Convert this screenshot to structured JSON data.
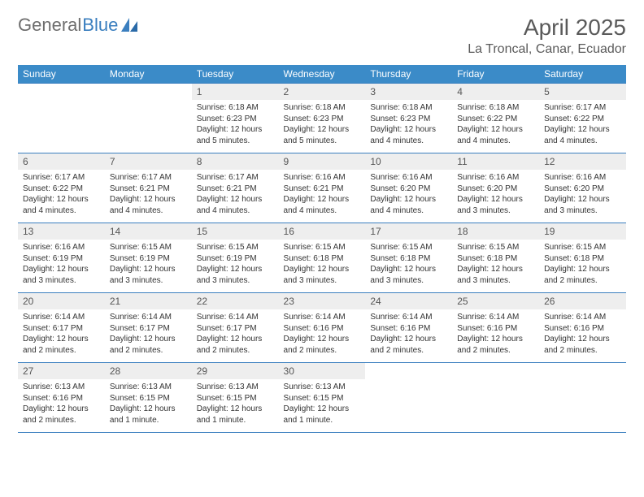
{
  "logo": {
    "text1": "General",
    "text2": "Blue"
  },
  "title": "April 2025",
  "location": "La Troncal, Canar, Ecuador",
  "colors": {
    "header_bg": "#3b8bc8",
    "header_text": "#ffffff",
    "border": "#3b7fbf",
    "daynum_bg": "#eeeeee",
    "text": "#333333",
    "logo_gray": "#6e6e6e",
    "logo_blue": "#3b7fbf"
  },
  "weekdays": [
    "Sunday",
    "Monday",
    "Tuesday",
    "Wednesday",
    "Thursday",
    "Friday",
    "Saturday"
  ],
  "firstDayIndex": 2,
  "daysInMonth": 30,
  "days": {
    "1": {
      "sunrise": "6:18 AM",
      "sunset": "6:23 PM",
      "daylight": "12 hours and 5 minutes."
    },
    "2": {
      "sunrise": "6:18 AM",
      "sunset": "6:23 PM",
      "daylight": "12 hours and 5 minutes."
    },
    "3": {
      "sunrise": "6:18 AM",
      "sunset": "6:23 PM",
      "daylight": "12 hours and 4 minutes."
    },
    "4": {
      "sunrise": "6:18 AM",
      "sunset": "6:22 PM",
      "daylight": "12 hours and 4 minutes."
    },
    "5": {
      "sunrise": "6:17 AM",
      "sunset": "6:22 PM",
      "daylight": "12 hours and 4 minutes."
    },
    "6": {
      "sunrise": "6:17 AM",
      "sunset": "6:22 PM",
      "daylight": "12 hours and 4 minutes."
    },
    "7": {
      "sunrise": "6:17 AM",
      "sunset": "6:21 PM",
      "daylight": "12 hours and 4 minutes."
    },
    "8": {
      "sunrise": "6:17 AM",
      "sunset": "6:21 PM",
      "daylight": "12 hours and 4 minutes."
    },
    "9": {
      "sunrise": "6:16 AM",
      "sunset": "6:21 PM",
      "daylight": "12 hours and 4 minutes."
    },
    "10": {
      "sunrise": "6:16 AM",
      "sunset": "6:20 PM",
      "daylight": "12 hours and 4 minutes."
    },
    "11": {
      "sunrise": "6:16 AM",
      "sunset": "6:20 PM",
      "daylight": "12 hours and 3 minutes."
    },
    "12": {
      "sunrise": "6:16 AM",
      "sunset": "6:20 PM",
      "daylight": "12 hours and 3 minutes."
    },
    "13": {
      "sunrise": "6:16 AM",
      "sunset": "6:19 PM",
      "daylight": "12 hours and 3 minutes."
    },
    "14": {
      "sunrise": "6:15 AM",
      "sunset": "6:19 PM",
      "daylight": "12 hours and 3 minutes."
    },
    "15": {
      "sunrise": "6:15 AM",
      "sunset": "6:19 PM",
      "daylight": "12 hours and 3 minutes."
    },
    "16": {
      "sunrise": "6:15 AM",
      "sunset": "6:18 PM",
      "daylight": "12 hours and 3 minutes."
    },
    "17": {
      "sunrise": "6:15 AM",
      "sunset": "6:18 PM",
      "daylight": "12 hours and 3 minutes."
    },
    "18": {
      "sunrise": "6:15 AM",
      "sunset": "6:18 PM",
      "daylight": "12 hours and 3 minutes."
    },
    "19": {
      "sunrise": "6:15 AM",
      "sunset": "6:18 PM",
      "daylight": "12 hours and 2 minutes."
    },
    "20": {
      "sunrise": "6:14 AM",
      "sunset": "6:17 PM",
      "daylight": "12 hours and 2 minutes."
    },
    "21": {
      "sunrise": "6:14 AM",
      "sunset": "6:17 PM",
      "daylight": "12 hours and 2 minutes."
    },
    "22": {
      "sunrise": "6:14 AM",
      "sunset": "6:17 PM",
      "daylight": "12 hours and 2 minutes."
    },
    "23": {
      "sunrise": "6:14 AM",
      "sunset": "6:16 PM",
      "daylight": "12 hours and 2 minutes."
    },
    "24": {
      "sunrise": "6:14 AM",
      "sunset": "6:16 PM",
      "daylight": "12 hours and 2 minutes."
    },
    "25": {
      "sunrise": "6:14 AM",
      "sunset": "6:16 PM",
      "daylight": "12 hours and 2 minutes."
    },
    "26": {
      "sunrise": "6:14 AM",
      "sunset": "6:16 PM",
      "daylight": "12 hours and 2 minutes."
    },
    "27": {
      "sunrise": "6:13 AM",
      "sunset": "6:16 PM",
      "daylight": "12 hours and 2 minutes."
    },
    "28": {
      "sunrise": "6:13 AM",
      "sunset": "6:15 PM",
      "daylight": "12 hours and 1 minute."
    },
    "29": {
      "sunrise": "6:13 AM",
      "sunset": "6:15 PM",
      "daylight": "12 hours and 1 minute."
    },
    "30": {
      "sunrise": "6:13 AM",
      "sunset": "6:15 PM",
      "daylight": "12 hours and 1 minute."
    }
  },
  "labels": {
    "sunrise": "Sunrise:",
    "sunset": "Sunset:",
    "daylight": "Daylight:"
  }
}
